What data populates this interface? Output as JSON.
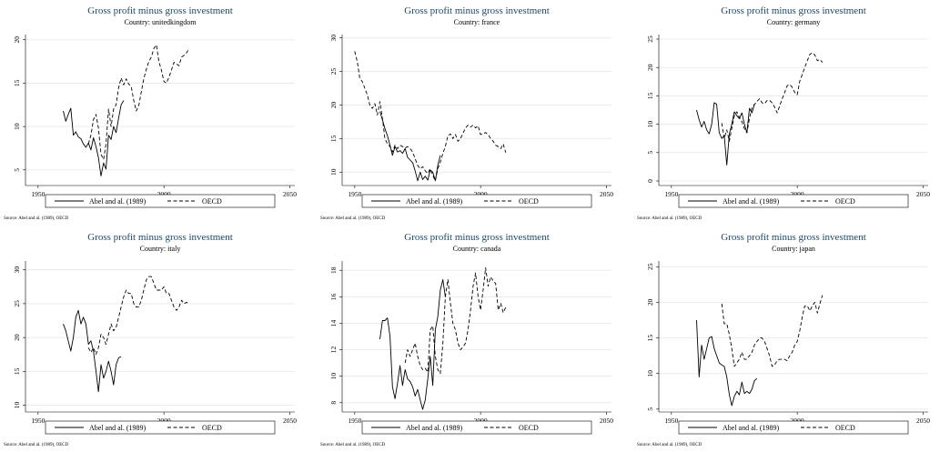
{
  "figure": {
    "source_note": "Source: Abel and al. (1989), OECD"
  },
  "chart_data": [
    {
      "type": "line",
      "title": "Gross profit minus gross investment",
      "subtitle": "Country: unitedkingdom",
      "xlim": [
        1945,
        2052
      ],
      "xticks": [
        1950,
        2000,
        2050
      ],
      "ylim": [
        3.2,
        20.6
      ],
      "yticks": [
        5,
        10,
        15,
        20
      ],
      "grid": true,
      "legend_position": "bottom",
      "series": [
        {
          "name": "Abel and al. (1989)",
          "style": "solid",
          "x": [
            1960,
            1961,
            1962,
            1963,
            1964,
            1965,
            1966,
            1967,
            1968,
            1969,
            1970,
            1971,
            1972,
            1973,
            1974,
            1975,
            1976,
            1977,
            1978,
            1979,
            1980,
            1981,
            1982,
            1983,
            1984
          ],
          "y": [
            11.8,
            10.6,
            11.4,
            12.1,
            9.0,
            9.4,
            8.8,
            8.6,
            8.0,
            7.6,
            8.1,
            7.3,
            8.7,
            7.7,
            6.4,
            4.3,
            5.8,
            5.1,
            9.0,
            8.5,
            10.0,
            9.3,
            11.0,
            12.5,
            13.0
          ]
        },
        {
          "name": "OECD",
          "style": "dashed",
          "x": [
            1970,
            1971,
            1972,
            1973,
            1974,
            1975,
            1976,
            1977,
            1978,
            1979,
            1980,
            1981,
            1982,
            1983,
            1984,
            1985,
            1986,
            1987,
            1988,
            1989,
            1990,
            1991,
            1992,
            1993,
            1994,
            1995,
            1996,
            1997,
            1998,
            1999,
            2000,
            2001,
            2002,
            2003,
            2004,
            2005,
            2006,
            2007,
            2008,
            2009,
            2010
          ],
          "y": [
            8.0,
            9.0,
            10.8,
            11.4,
            9.8,
            6.8,
            6.2,
            8.0,
            12.0,
            10.0,
            12.0,
            12.5,
            14.5,
            15.6,
            14.8,
            15.5,
            14.9,
            14.6,
            13.0,
            11.8,
            12.4,
            14.0,
            15.5,
            16.6,
            17.5,
            18.0,
            19.0,
            19.4,
            17.5,
            16.5,
            15.2,
            15.0,
            15.7,
            16.5,
            17.4,
            17.2,
            17.0,
            18.0,
            18.2,
            18.5,
            19.0
          ]
        }
      ]
    },
    {
      "type": "line",
      "title": "Gross profit minus gross investment",
      "subtitle": "Country: france",
      "xlim": [
        1945,
        2052
      ],
      "xticks": [
        1950,
        2000,
        2050
      ],
      "ylim": [
        8.0,
        30.5
      ],
      "yticks": [
        10,
        15,
        20,
        25,
        30
      ],
      "grid": true,
      "legend_position": "bottom",
      "series": [
        {
          "name": "Abel and al. (1989)",
          "style": "solid",
          "x": [
            1960,
            1961,
            1962,
            1963,
            1964,
            1965,
            1966,
            1967,
            1968,
            1969,
            1970,
            1971,
            1972,
            1973,
            1974,
            1975,
            1976,
            1977,
            1978,
            1979,
            1980,
            1981,
            1982,
            1983,
            1984
          ],
          "y": [
            19.0,
            17.8,
            16.5,
            15.4,
            14.0,
            12.5,
            13.8,
            13.0,
            13.2,
            12.8,
            13.5,
            12.2,
            11.8,
            11.4,
            10.2,
            8.7,
            10.0,
            8.9,
            9.4,
            8.8,
            10.3,
            10.0,
            8.7,
            11.0,
            12.5
          ]
        },
        {
          "name": "OECD",
          "style": "dashed",
          "x": [
            1950,
            1951,
            1952,
            1953,
            1954,
            1955,
            1956,
            1957,
            1958,
            1959,
            1960,
            1961,
            1962,
            1963,
            1964,
            1965,
            1966,
            1967,
            1968,
            1969,
            1970,
            1971,
            1972,
            1973,
            1974,
            1975,
            1976,
            1977,
            1978,
            1979,
            1980,
            1981,
            1982,
            1983,
            1984,
            1985,
            1986,
            1987,
            1988,
            1989,
            1990,
            1991,
            1992,
            1993,
            1994,
            1995,
            1996,
            1997,
            1998,
            1999,
            2000,
            2001,
            2002,
            2003,
            2004,
            2005,
            2006,
            2007,
            2008,
            2009,
            2010
          ],
          "y": [
            28.0,
            26.5,
            24.0,
            23.5,
            22.5,
            21.5,
            20.0,
            19.5,
            20.2,
            18.5,
            20.5,
            18.0,
            15.0,
            14.2,
            13.8,
            13.0,
            14.0,
            13.5,
            14.0,
            13.8,
            13.6,
            13.8,
            13.5,
            13.0,
            12.0,
            11.0,
            10.5,
            10.8,
            10.2,
            9.8,
            10.5,
            9.5,
            8.7,
            10.5,
            11.5,
            12.8,
            13.8,
            15.4,
            15.7,
            15.0,
            15.6,
            14.6,
            15.0,
            15.8,
            16.6,
            17.0,
            16.7,
            17.0,
            16.6,
            16.9,
            15.6,
            15.7,
            15.9,
            15.6,
            15.0,
            14.6,
            14.0,
            13.8,
            13.5,
            14.2,
            12.9
          ]
        }
      ]
    },
    {
      "type": "line",
      "title": "Gross profit minus gross investment",
      "subtitle": "Country: germany",
      "xlim": [
        1945,
        2052
      ],
      "xticks": [
        1950,
        2000,
        2050
      ],
      "ylim": [
        -0.8,
        25.8
      ],
      "yticks": [
        0,
        5,
        10,
        15,
        20,
        25
      ],
      "grid": true,
      "legend_position": "bottom",
      "series": [
        {
          "name": "Abel and al. (1989)",
          "style": "solid",
          "x": [
            1960,
            1961,
            1962,
            1963,
            1964,
            1965,
            1966,
            1967,
            1968,
            1969,
            1970,
            1971,
            1972,
            1973,
            1974,
            1975,
            1976,
            1977,
            1978,
            1979,
            1980,
            1981,
            1982,
            1983
          ],
          "y": [
            12.5,
            10.8,
            9.5,
            10.5,
            9.0,
            8.3,
            10.0,
            13.8,
            13.5,
            8.5,
            7.5,
            8.0,
            2.8,
            8.3,
            10.0,
            12.2,
            11.5,
            11.0,
            12.0,
            10.0,
            8.5,
            12.8,
            12.0,
            13.5
          ]
        },
        {
          "name": "OECD",
          "style": "dashed",
          "x": [
            1970,
            1971,
            1972,
            1973,
            1974,
            1975,
            1976,
            1977,
            1978,
            1979,
            1980,
            1981,
            1982,
            1983,
            1984,
            1985,
            1986,
            1987,
            1988,
            1989,
            1990,
            1991,
            1992,
            1993,
            1994,
            1995,
            1996,
            1997,
            1998,
            1999,
            2000,
            2001,
            2002,
            2003,
            2004,
            2005,
            2006,
            2007,
            2008,
            2009,
            2010
          ],
          "y": [
            10.2,
            7.5,
            9.0,
            7.0,
            9.3,
            11.5,
            12.2,
            11.2,
            10.5,
            9.2,
            8.5,
            11.0,
            13.0,
            13.5,
            14.0,
            14.5,
            13.8,
            13.6,
            14.2,
            14.2,
            13.8,
            13.0,
            12.0,
            13.2,
            14.5,
            15.6,
            16.8,
            17.0,
            16.5,
            15.6,
            15.2,
            17.6,
            18.8,
            20.0,
            21.2,
            22.3,
            22.6,
            22.2,
            21.2,
            21.4,
            20.9
          ]
        }
      ]
    },
    {
      "type": "line",
      "title": "Gross profit minus gross investment",
      "subtitle": "Country: italy",
      "xlim": [
        1945,
        2052
      ],
      "xticks": [
        1950,
        2000,
        2050
      ],
      "ylim": [
        9.0,
        31.3
      ],
      "yticks": [
        10,
        15,
        20,
        25,
        30
      ],
      "grid": true,
      "legend_position": "bottom",
      "series": [
        {
          "name": "Abel and al. (1989)",
          "style": "solid",
          "x": [
            1960,
            1961,
            1962,
            1963,
            1964,
            1965,
            1966,
            1967,
            1968,
            1969,
            1970,
            1971,
            1972,
            1973,
            1974,
            1975,
            1976,
            1977,
            1978,
            1979,
            1980,
            1981,
            1982,
            1983
          ],
          "y": [
            22.0,
            21.0,
            19.5,
            18.0,
            20.0,
            23.0,
            24.0,
            22.0,
            23.0,
            22.0,
            19.0,
            19.5,
            18.0,
            15.0,
            12.0,
            16.0,
            14.0,
            15.0,
            16.5,
            15.0,
            13.0,
            16.0,
            17.0,
            17.2
          ]
        },
        {
          "name": "OECD",
          "style": "dashed",
          "x": [
            1970,
            1971,
            1972,
            1973,
            1974,
            1975,
            1976,
            1977,
            1978,
            1979,
            1980,
            1981,
            1982,
            1983,
            1984,
            1985,
            1986,
            1987,
            1988,
            1989,
            1990,
            1991,
            1992,
            1993,
            1994,
            1995,
            1996,
            1997,
            1998,
            1999,
            2000,
            2001,
            2002,
            2003,
            2004,
            2005,
            2006,
            2007,
            2008,
            2009,
            2010
          ],
          "y": [
            18.5,
            17.8,
            18.5,
            17.5,
            18.5,
            20.5,
            20.0,
            19.0,
            20.5,
            22.0,
            21.0,
            21.5,
            23.0,
            24.5,
            26.0,
            27.0,
            26.5,
            26.5,
            25.0,
            24.5,
            24.5,
            25.5,
            27.0,
            28.5,
            29.0,
            29.0,
            28.0,
            27.0,
            27.0,
            27.0,
            27.5,
            26.5,
            26.5,
            25.5,
            24.5,
            24.0,
            24.5,
            25.5,
            25.0,
            25.2,
            25.0
          ]
        }
      ]
    },
    {
      "type": "line",
      "title": "Gross profit minus gross investment",
      "subtitle": "Country: canada",
      "xlim": [
        1945,
        2052
      ],
      "xticks": [
        1950,
        2000,
        2050
      ],
      "ylim": [
        7.3,
        18.7
      ],
      "yticks": [
        8,
        10,
        12,
        14,
        16,
        18
      ],
      "grid": true,
      "legend_position": "bottom",
      "series": [
        {
          "name": "Abel and al. (1989)",
          "style": "solid",
          "x": [
            1960,
            1961,
            1962,
            1963,
            1964,
            1965,
            1966,
            1967,
            1968,
            1969,
            1970,
            1971,
            1972,
            1973,
            1974,
            1975,
            1976,
            1977,
            1978,
            1979,
            1980,
            1981,
            1982,
            1983,
            1984,
            1985,
            1986
          ],
          "y": [
            12.8,
            14.2,
            14.2,
            14.4,
            13.0,
            9.2,
            8.3,
            9.5,
            10.8,
            9.3,
            10.5,
            9.8,
            9.6,
            9.2,
            8.5,
            9.0,
            8.2,
            7.5,
            8.2,
            9.8,
            11.5,
            9.3,
            13.5,
            14.5,
            16.5,
            17.3,
            16.0
          ]
        },
        {
          "name": "OECD",
          "style": "dashed",
          "x": [
            1970,
            1971,
            1972,
            1973,
            1974,
            1975,
            1976,
            1977,
            1978,
            1979,
            1980,
            1981,
            1982,
            1983,
            1984,
            1985,
            1986,
            1987,
            1988,
            1989,
            1990,
            1991,
            1992,
            1993,
            1994,
            1995,
            1996,
            1997,
            1998,
            1999,
            2000,
            2001,
            2002,
            2003,
            2004,
            2005,
            2006,
            2007,
            2008,
            2009,
            2010
          ],
          "y": [
            11.0,
            12.0,
            11.5,
            12.0,
            12.5,
            11.5,
            10.8,
            10.5,
            10.6,
            10.3,
            13.5,
            13.8,
            11.5,
            10.5,
            10.2,
            12.5,
            16.0,
            17.3,
            15.5,
            14.0,
            13.5,
            12.5,
            12.0,
            12.2,
            12.5,
            13.5,
            15.0,
            16.8,
            17.8,
            16.0,
            15.0,
            16.5,
            18.2,
            16.8,
            17.5,
            17.2,
            17.0,
            15.0,
            15.5,
            14.8,
            15.2
          ]
        }
      ]
    },
    {
      "type": "line",
      "title": "Gross profit minus gross investment",
      "subtitle": "Country: japan",
      "xlim": [
        1945,
        2052
      ],
      "xticks": [
        1950,
        2000,
        2050
      ],
      "ylim": [
        4.6,
        25.8
      ],
      "yticks": [
        5,
        10,
        15,
        20,
        25
      ],
      "grid": true,
      "legend_position": "bottom",
      "series": [
        {
          "name": "Abel and al. (1989)",
          "style": "solid",
          "x": [
            1960,
            1961,
            1962,
            1963,
            1964,
            1965,
            1966,
            1967,
            1968,
            1969,
            1970,
            1971,
            1972,
            1973,
            1974,
            1975,
            1976,
            1977,
            1978,
            1979,
            1980,
            1981,
            1982,
            1983,
            1984
          ],
          "y": [
            17.5,
            9.5,
            14.0,
            12.0,
            13.5,
            15.0,
            15.2,
            13.5,
            12.5,
            11.5,
            11.2,
            11.0,
            9.5,
            7.0,
            5.5,
            6.8,
            7.5,
            7.0,
            8.8,
            7.2,
            7.5,
            7.2,
            7.8,
            9.0,
            9.3
          ]
        },
        {
          "name": "OECD",
          "style": "dashed",
          "x": [
            1970,
            1971,
            1972,
            1973,
            1974,
            1975,
            1976,
            1977,
            1978,
            1979,
            1980,
            1981,
            1982,
            1983,
            1984,
            1985,
            1986,
            1987,
            1988,
            1989,
            1990,
            1991,
            1992,
            1993,
            1994,
            1995,
            1996,
            1997,
            1998,
            1999,
            2000,
            2001,
            2002,
            2003,
            2004,
            2005,
            2006,
            2007,
            2008,
            2009,
            2010
          ],
          "y": [
            19.8,
            17.0,
            17.0,
            15.5,
            13.5,
            11.0,
            11.5,
            12.0,
            13.0,
            12.0,
            12.0,
            12.5,
            13.0,
            14.0,
            14.5,
            15.0,
            15.0,
            14.5,
            13.5,
            12.5,
            11.0,
            11.2,
            11.8,
            12.0,
            12.0,
            12.0,
            11.8,
            12.5,
            13.0,
            14.0,
            14.5,
            16.0,
            18.0,
            19.5,
            19.5,
            18.8,
            19.5,
            20.0,
            18.5,
            19.8,
            21.0
          ]
        }
      ]
    }
  ]
}
